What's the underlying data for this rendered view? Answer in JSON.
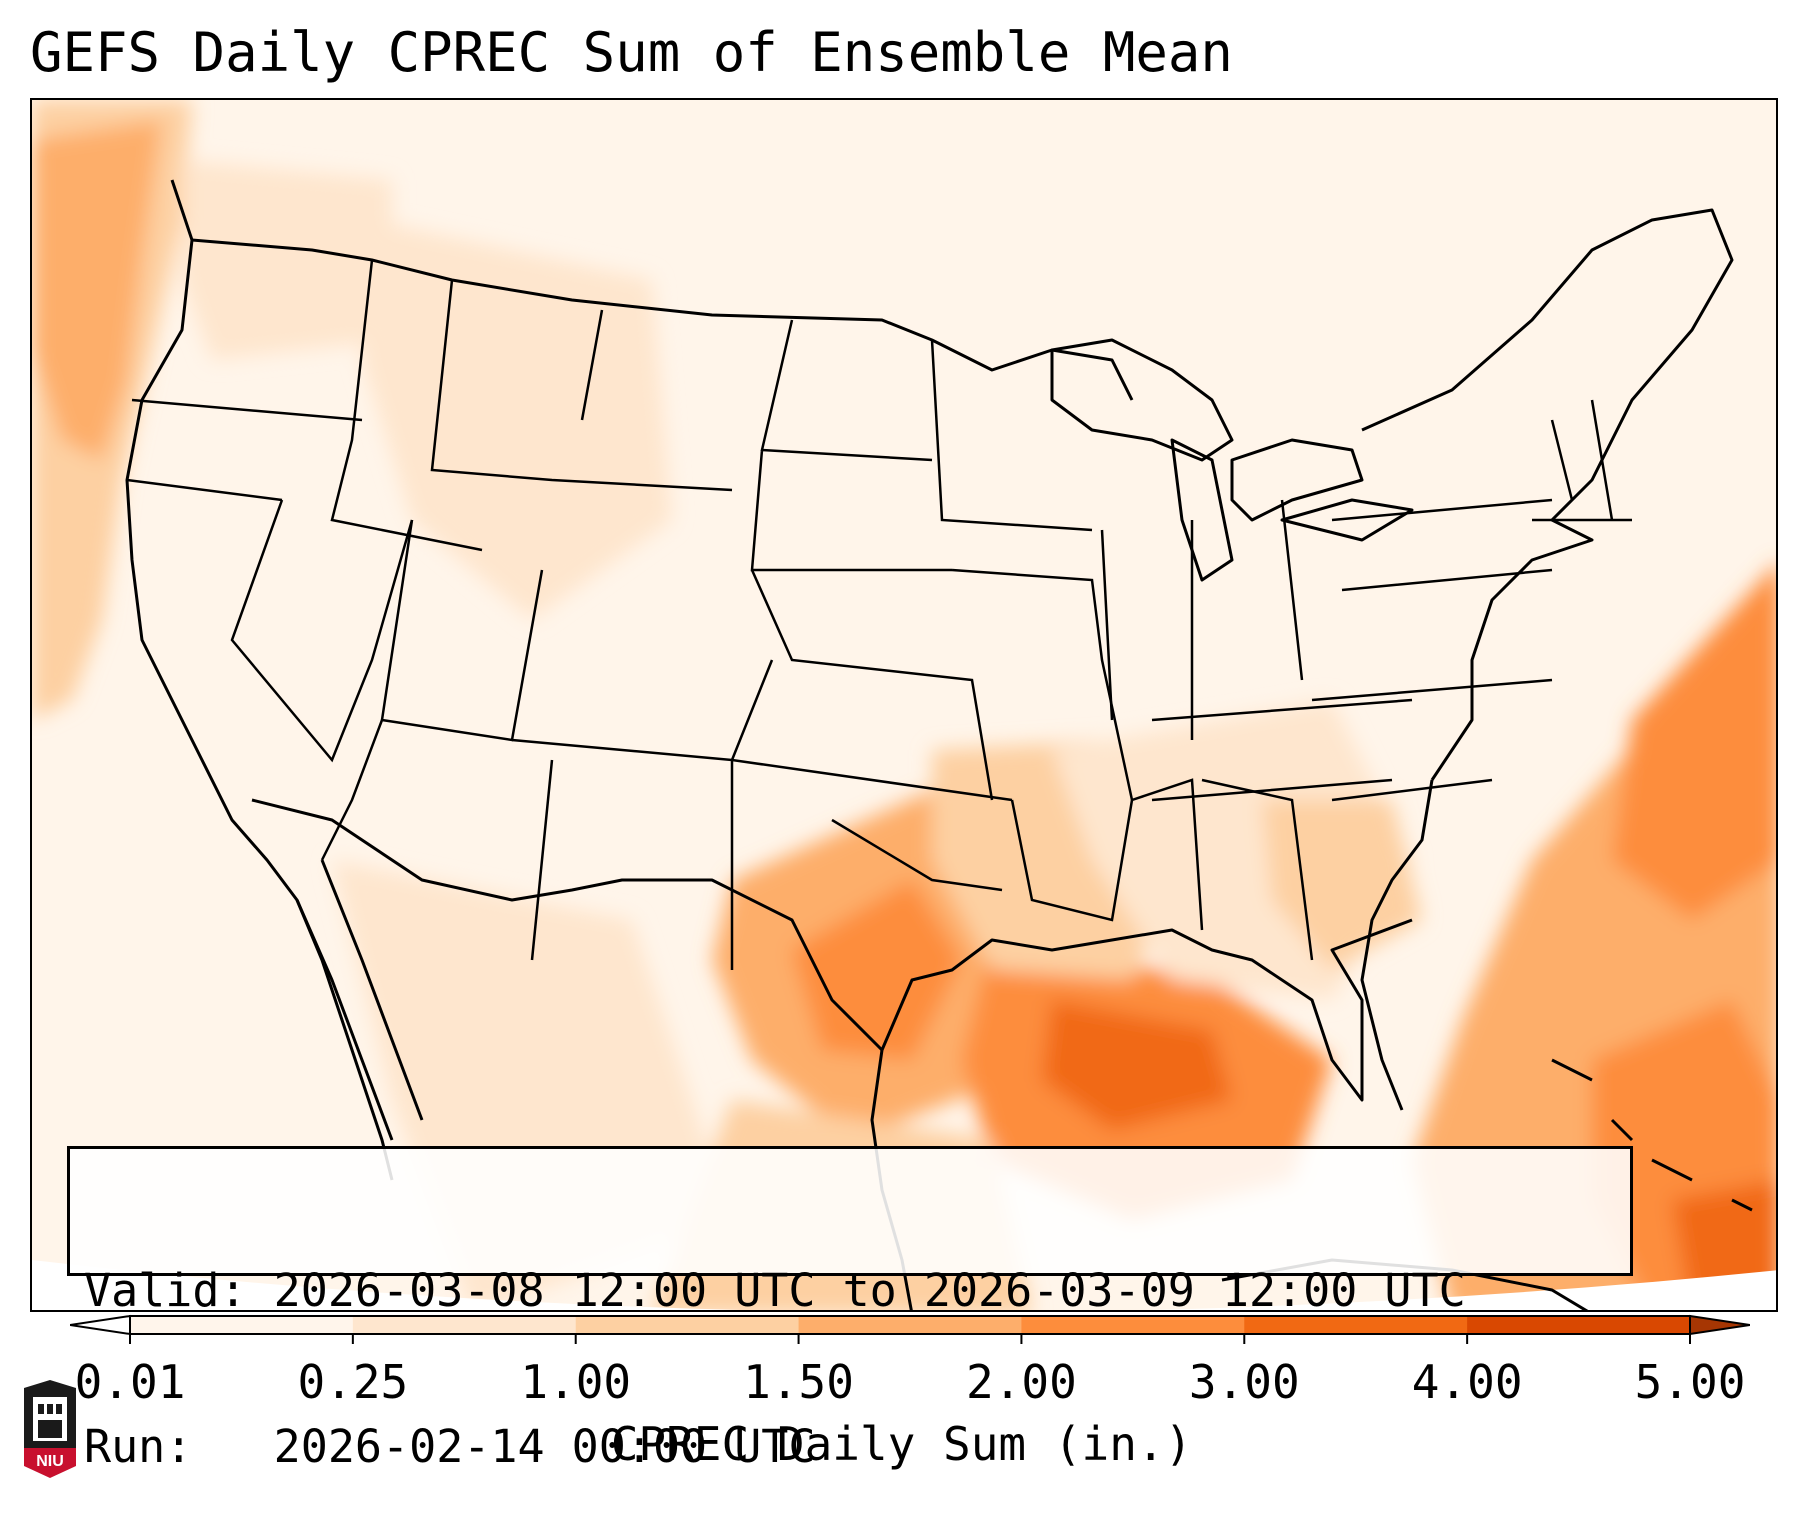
{
  "title": "GEFS Daily CPREC Sum of Ensemble Mean",
  "info": {
    "valid_line": "Valid: 2026-03-08 12:00 UTC to 2026-03-09 12:00 UTC",
    "run_line": "Run:   2026-02-14 00:00 UTC"
  },
  "colorbar": {
    "label": "CPREC Daily Sum (in.)",
    "ticks": [
      "0.01",
      "0.25",
      "1.00",
      "1.50",
      "2.00",
      "3.00",
      "4.00",
      "5.00"
    ],
    "colors": [
      "#fff5eb",
      "#fee6ce",
      "#fdd0a2",
      "#fdae6b",
      "#fd8d3c",
      "#f16913",
      "#d94801",
      "#a63603"
    ],
    "extend": "both"
  },
  "logo": {
    "text": "NIU",
    "colors": {
      "shield": "#c8102e",
      "tower": "#1a1a1a"
    }
  },
  "map": {
    "projection": "Lambert Conformal",
    "region": "Contiguous United States",
    "borders": [
      "states",
      "countries",
      "coastlines"
    ]
  }
}
